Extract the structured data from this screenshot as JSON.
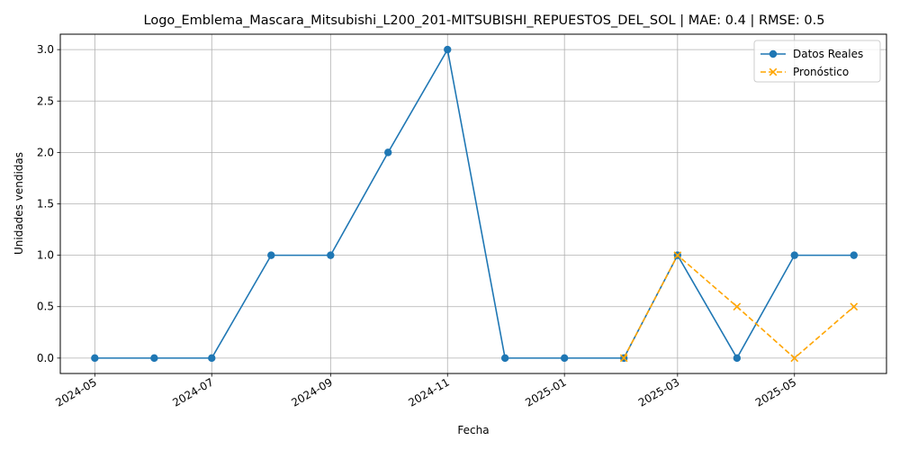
{
  "chart_data": {
    "type": "line",
    "title": "Logo_Emblema_Mascara_Mitsubishi_L200_201-MITSUBISHI_REPUESTOS_DEL_SOL | MAE: 0.4 | RMSE: 0.5",
    "xlabel": "Fecha",
    "ylabel": "Unidades vendidas",
    "xlim": [
      "2024-04-13",
      "2025-06-18"
    ],
    "ylim": [
      -0.15,
      3.15
    ],
    "yticks": [
      0.0,
      0.5,
      1.0,
      1.5,
      2.0,
      2.5,
      3.0
    ],
    "xticks": [
      "2024-05",
      "2024-07",
      "2024-09",
      "2024-11",
      "2025-01",
      "2025-03",
      "2025-05"
    ],
    "grid": true,
    "legend_position": "top-right",
    "series": [
      {
        "name": "Datos Reales",
        "color": "#1f77b4",
        "style": "solid",
        "marker": "circle",
        "x": [
          "2024-05-01",
          "2024-06-01",
          "2024-07-01",
          "2024-08-01",
          "2024-09-01",
          "2024-10-01",
          "2024-11-01",
          "2024-12-01",
          "2025-01-01",
          "2025-02-01",
          "2025-03-01",
          "2025-04-01",
          "2025-05-01",
          "2025-06-01"
        ],
        "values": [
          0,
          0,
          0,
          1,
          1,
          2,
          3,
          0,
          0,
          0,
          1,
          0,
          1,
          1
        ]
      },
      {
        "name": "Pronóstico",
        "color": "#ffa500",
        "style": "dashed",
        "marker": "x",
        "x": [
          "2025-02-01",
          "2025-03-01",
          "2025-04-01",
          "2025-05-01",
          "2025-06-01"
        ],
        "values": [
          0,
          1,
          0.5,
          0,
          0.5
        ]
      }
    ]
  }
}
